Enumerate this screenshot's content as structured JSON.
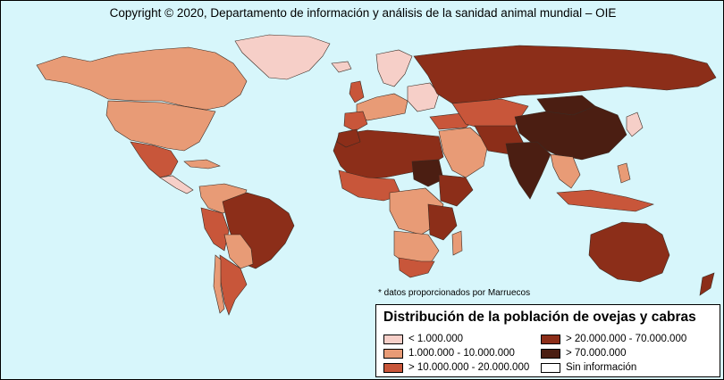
{
  "map": {
    "copyright": "Copyright © 2020, Departamento de información y análisis de la sanidad animal mundial – OIE",
    "footnote": "* datos proporcionados por Marruecos",
    "ocean_color": "#d7f6fb"
  },
  "legend": {
    "title": "Distribución de la población de ovejas y cabras",
    "items": [
      {
        "label": "< 1.000.000",
        "color": "#f6cfc8"
      },
      {
        "label": "1.000.000 - 10.000.000",
        "color": "#e89b76"
      },
      {
        "label": "> 10.000.000 - 20.000.000",
        "color": "#c8563a"
      },
      {
        "label": "> 20.000.000 - 70.000.000",
        "color": "#8c2e19"
      },
      {
        "label": "> 70.000.000",
        "color": "#4b1e12"
      },
      {
        "label": "Sin información",
        "color": "#ffffff"
      }
    ]
  }
}
